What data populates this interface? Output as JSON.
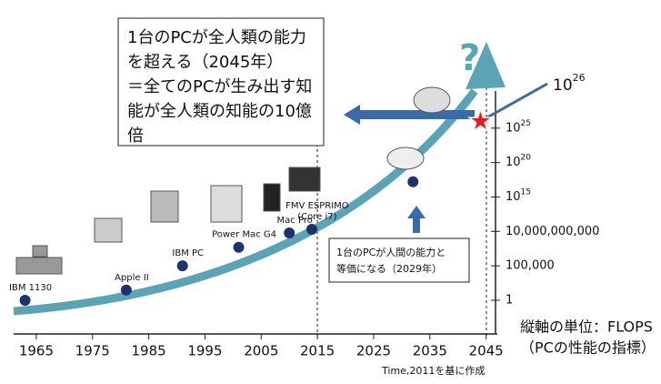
{
  "chart_data": {
    "type": "scatter",
    "log_y": true,
    "x": [
      1963,
      1981,
      1991,
      2001,
      2010,
      2014,
      2032
    ],
    "series": [
      {
        "color": "#1e3270",
        "values": [
          1,
          30,
          100000,
          50000000,
          6000000000,
          20000000000,
          1.6e+17
        ]
      }
    ],
    "point_labels": [
      [
        "IBM 1130"
      ],
      [
        "Apple II"
      ],
      [
        "IBM PC"
      ],
      [
        "Power Mac G4"
      ],
      [
        "Mac Pro"
      ],
      [
        "FMV ESPRIMO",
        "(Core i7)"
      ],
      null
    ],
    "highlight": {
      "x": 2044,
      "value": 1e+26,
      "color": "#e02020",
      "label": "10",
      "exponent": "26"
    },
    "xlim": [
      1961,
      2047
    ],
    "xticks": [
      1965,
      1975,
      1985,
      1995,
      2005,
      2015,
      2025,
      2035,
      2045
    ],
    "ylim": [
      1e-05,
      1e+30
    ],
    "yticks": [
      1,
      {
        "value": 100000,
        "label": "100,000"
      },
      {
        "value": 10000000000,
        "label": "10,000,000,000"
      },
      {
        "value": 1000000000000000.0,
        "label": "10",
        "exponent": "15"
      },
      {
        "value": 1e+20,
        "label": "10",
        "exponent": "20"
      },
      {
        "value": 1e+25,
        "label": "10",
        "exponent": "25"
      }
    ],
    "grid": false,
    "annotations": {
      "box1": [
        "1台のPCが全人類の能力",
        "を超える（2045年）",
        "＝全てのPCが生み出す知",
        "能が全人類の知能の10億",
        "倍"
      ],
      "box2": [
        "1台のPCが人間の能力と",
        "等価になる（2029年）"
      ],
      "unit": [
        "縦軸の単位：FLOPS",
        "（PCの性能の指標）"
      ],
      "source": "Time,2011を基に作成",
      "question": "?"
    }
  }
}
